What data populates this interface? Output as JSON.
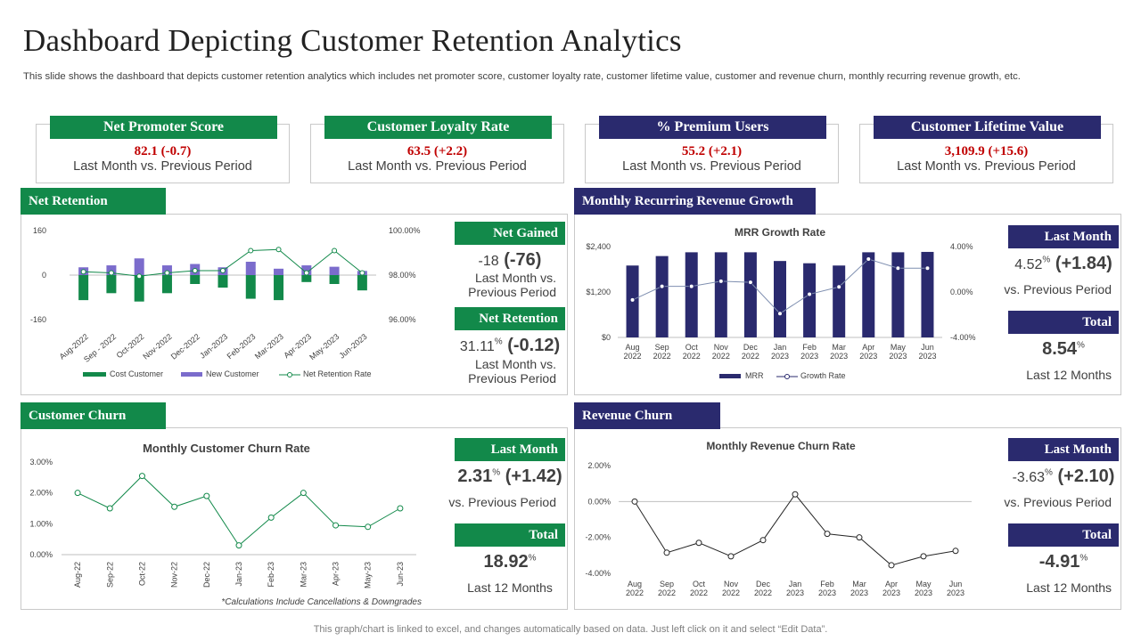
{
  "page": {
    "title": "Dashboard Depicting Customer Retention Analytics",
    "subtitle": "This slide shows the dashboard that depicts customer retention analytics which includes net promoter score, customer loyalty rate,  customer lifetime value, customer and revenue churn, monthly recurring revenue growth, etc.",
    "footer": "This graph/chart is linked to excel,  and changes automatically based on data. Just left click on it and select “Edit Data”."
  },
  "colors": {
    "green": "#12894a",
    "navy": "#2a2a6e",
    "purple": "#7b6ccc",
    "red": "#c00000"
  },
  "kpis": [
    {
      "label": "Net Promoter Score",
      "value": "82.1 (-0.7)",
      "caption": "Last Month vs. Previous Period"
    },
    {
      "label": "Customer Loyalty Rate",
      "value": "63.5 (+2.2)",
      "caption": "Last Month vs. Previous Period"
    },
    {
      "label": "% Premium Users",
      "value": "55.2 (+2.1)",
      "caption": "Last Month vs. Previous Period"
    },
    {
      "label": "Customer Lifetime Value",
      "value": "3,109.9 (+15.6)",
      "caption": "Last Month vs. Previous Period"
    }
  ],
  "net_retention": {
    "header": "Net Retention",
    "side": {
      "gained_label": "Net Gained",
      "gained_pre": "-18",
      "gained_delta": "(-76)",
      "gained_caption1": "Last Month vs.",
      "gained_caption2": "Previous Period",
      "retention_label": "Net Retention",
      "retention_pre": "31.11",
      "retention_sup": "%",
      "retention_delta": "(-0.12)",
      "retention_caption1": "Last Month vs.",
      "retention_caption2": "Previous Period"
    }
  },
  "mrr": {
    "header": "Monthly Recurring  Revenue Growth",
    "side": {
      "last_label": "Last Month",
      "last_pre": "4.52",
      "last_sup": "%",
      "last_delta": "(+1.84)",
      "last_caption": "vs. Previous Period",
      "total_label": "Total",
      "total_value": "8.54",
      "total_sup": "%",
      "total_caption": "Last 12 Months"
    }
  },
  "customer_churn": {
    "header": "Customer  Churn",
    "footnote": "*Calculations Include Cancellations & Downgrades",
    "side": {
      "last_label": "Last Month",
      "last_pre": "2.31",
      "last_sup": "%",
      "last_delta": "(+1.42)",
      "last_caption": "vs. Previous Period",
      "total_label": "Total",
      "total_value": "18.92",
      "total_sup": "%",
      "total_caption": "Last 12 Months"
    }
  },
  "revenue_churn": {
    "header": "Revenue Churn",
    "side": {
      "last_label": "Last Month",
      "last_pre": "-3.63",
      "last_sup": "%",
      "last_delta": "(+2.10)",
      "last_caption": "vs. Previous Period",
      "total_label": "Total",
      "total_value": "-4.91",
      "total_sup": "%",
      "total_caption": "Last 12 Months"
    }
  },
  "chart_data": [
    {
      "id": "net_retention",
      "type": "bar",
      "title": "",
      "categories": [
        "Aug-2022",
        "Sep - 2022",
        "Oct-2022",
        "Nov-2022",
        "Dec-2022",
        "Jan-2023",
        "Feb-2023",
        "Mar-2023",
        "Apr-2023",
        "May-2023",
        "Jun-2023"
      ],
      "series": [
        {
          "name": "Cost Customer",
          "kind": "bar",
          "axis": "left",
          "values": [
            -90,
            -65,
            -95,
            -65,
            -32,
            -45,
            -85,
            -90,
            -25,
            -32,
            -55
          ]
        },
        {
          "name": "New Customer",
          "kind": "bar",
          "axis": "left",
          "values": [
            28,
            35,
            60,
            35,
            40,
            28,
            48,
            23,
            35,
            30,
            15
          ]
        },
        {
          "name": "Net Retention Rate",
          "kind": "line",
          "axis": "right",
          "values": [
            98.15,
            98.1,
            97.95,
            98.1,
            98.2,
            98.2,
            99.1,
            99.15,
            98.1,
            99.1,
            98.1
          ]
        }
      ],
      "y_left": {
        "range": [
          -160,
          160
        ],
        "ticks": [
          "160",
          "0",
          "-160"
        ]
      },
      "y_right": {
        "range": [
          96,
          100
        ],
        "ticks": [
          "100.00%",
          "98.00%",
          "96.00%"
        ]
      },
      "legend": [
        "Cost Customer",
        "New Customer",
        "Net Retention Rate"
      ]
    },
    {
      "id": "mrr",
      "type": "bar",
      "title": "MRR Growth Rate",
      "categories": [
        "Aug\n2022",
        "Sep\n2022",
        "Oct\n2022",
        "Nov\n2022",
        "Dec\n2022",
        "Jan\n2023",
        "Feb\n2023",
        "Mar\n2023",
        "Apr\n2023",
        "May\n2023",
        "Jun\n2023"
      ],
      "series": [
        {
          "name": "MRR",
          "kind": "bar",
          "axis": "left",
          "values": [
            1900,
            2150,
            2250,
            2250,
            2250,
            2020,
            1960,
            1900,
            2250,
            2250,
            2260
          ]
        },
        {
          "name": "Growth Rate",
          "kind": "line",
          "axis": "right",
          "values": [
            -0.7,
            0.5,
            0.5,
            0.95,
            0.85,
            -1.9,
            -0.2,
            0.45,
            2.9,
            2.1,
            2.1
          ]
        }
      ],
      "y_left": {
        "range": [
          0,
          2400
        ],
        "ticks": [
          "$2,400",
          "$1,200",
          "$0"
        ]
      },
      "y_right": {
        "range": [
          -4,
          4
        ],
        "ticks": [
          "4.00%",
          "0.00%",
          "-4.00%"
        ]
      },
      "legend": [
        "MRR",
        "Growth Rate"
      ]
    },
    {
      "id": "customer_churn",
      "type": "line",
      "title": "Monthly Customer  Churn Rate",
      "categories": [
        "Aug-22",
        "Sep-22",
        "Oct-22",
        "Nov-22",
        "Dec-22",
        "Jan-23",
        "Feb-23",
        "Mar-23",
        "Apr-23",
        "May-23",
        "Jun-23"
      ],
      "series": [
        {
          "name": "Customer Churn Rate",
          "values": [
            2.0,
            1.5,
            2.55,
            1.55,
            1.9,
            0.3,
            1.2,
            2.0,
            0.95,
            0.9,
            1.5
          ]
        }
      ],
      "ylim": [
        0,
        3
      ],
      "yticks": [
        "3.00%",
        "2.00%",
        "1.00%",
        "0.00%"
      ]
    },
    {
      "id": "revenue_churn",
      "type": "line",
      "title": "Monthly Revenue  Churn Rate",
      "categories": [
        "Aug\n2022",
        "Sep\n2022",
        "Oct\n2022",
        "Nov\n2022",
        "Dec\n2022",
        "Jan\n2023",
        "Feb\n2023",
        "Mar\n2023",
        "Apr\n2023",
        "May\n2023",
        "Jun\n2023"
      ],
      "series": [
        {
          "name": "Revenue Churn Rate",
          "values": [
            0.0,
            -2.85,
            -2.3,
            -3.05,
            -2.15,
            0.4,
            -1.8,
            -2.0,
            -3.55,
            -3.05,
            -2.75
          ]
        }
      ],
      "ylim": [
        -4,
        2
      ],
      "yticks": [
        "2.00%",
        "0.00%",
        "-2.00%",
        "-4.00%"
      ]
    }
  ]
}
